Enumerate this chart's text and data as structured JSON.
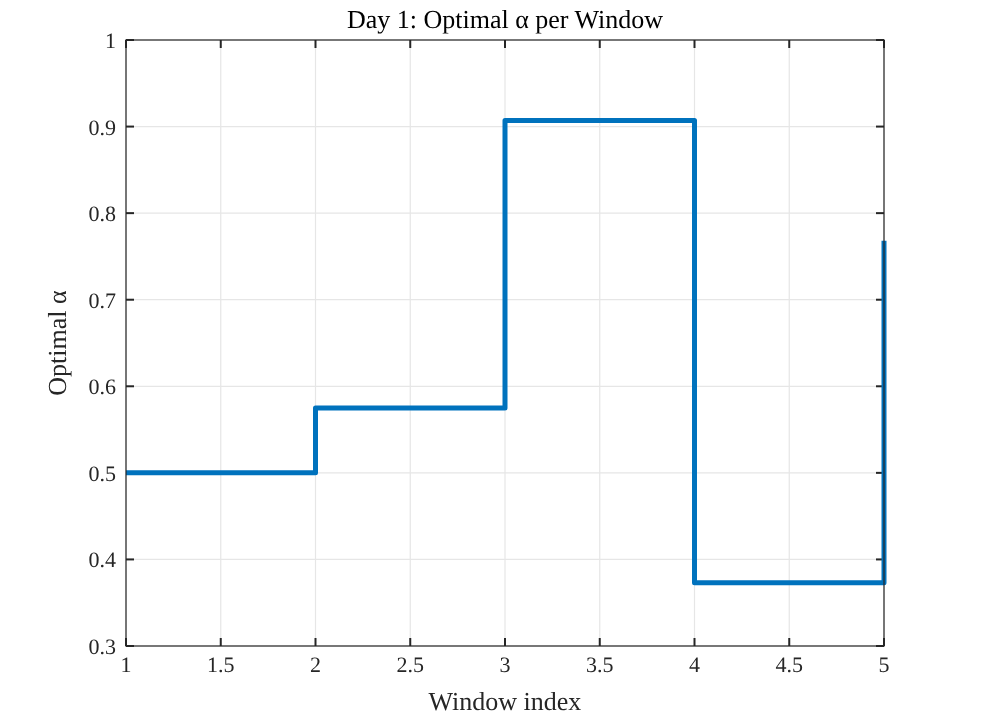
{
  "chart_data": {
    "type": "step",
    "title": "Day 1: Optimal α per Window",
    "xlabel": "Window index",
    "ylabel": "Optimal α",
    "x": [
      1,
      2,
      3,
      4,
      5
    ],
    "series": [
      {
        "color": "#0072bd",
        "values": [
          0.5,
          0.575,
          0.907,
          0.373,
          0.768
        ]
      }
    ],
    "xlim": [
      1,
      5
    ],
    "xticks": [
      1,
      1.5,
      2,
      2.5,
      3,
      3.5,
      4,
      4.5,
      5
    ],
    "ylim": [
      0.3,
      1
    ],
    "yticks": [
      0.3,
      0.4,
      0.5,
      0.6,
      0.7,
      0.8,
      0.9,
      1
    ],
    "grid": true,
    "marker": "none",
    "line_style": "solid"
  }
}
